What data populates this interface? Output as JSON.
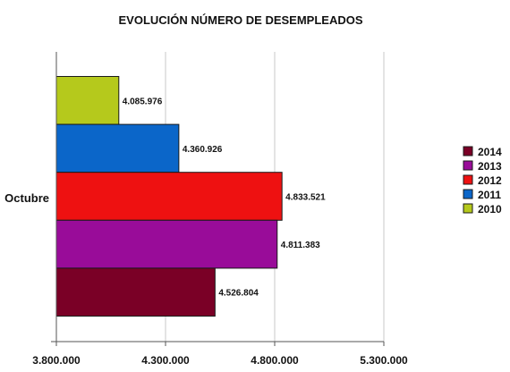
{
  "chart_data": {
    "type": "bar",
    "orientation": "horizontal",
    "title": "EVOLUCIÓN NÚMERO DE DESEMPLEADOS",
    "xlabel": "",
    "ylabel": "",
    "categories": [
      "Octubre"
    ],
    "series": [
      {
        "name": "2010",
        "values": [
          4085976
        ],
        "label": "4.085.976",
        "color": "#b5c91c"
      },
      {
        "name": "2011",
        "values": [
          4360926
        ],
        "label": "4.360.926",
        "color": "#0b66c9"
      },
      {
        "name": "2012",
        "values": [
          4833521
        ],
        "label": "4.833.521",
        "color": "#ee1111"
      },
      {
        "name": "2013",
        "values": [
          4811383
        ],
        "label": "4.811.383",
        "color": "#990c99"
      },
      {
        "name": "2014",
        "values": [
          4526804
        ],
        "label": "4.526.804",
        "color": "#7a0026"
      }
    ],
    "xlim": [
      3800000,
      5300000
    ],
    "xticks": [
      {
        "value": 3800000,
        "label": "3.800.000"
      },
      {
        "value": 4300000,
        "label": "4.300.000"
      },
      {
        "value": 4800000,
        "label": "4.800.000"
      },
      {
        "value": 5300000,
        "label": "5.300.000"
      }
    ],
    "grid": true,
    "legend_position": "right",
    "legend_order": [
      "2014",
      "2013",
      "2012",
      "2011",
      "2010"
    ]
  }
}
